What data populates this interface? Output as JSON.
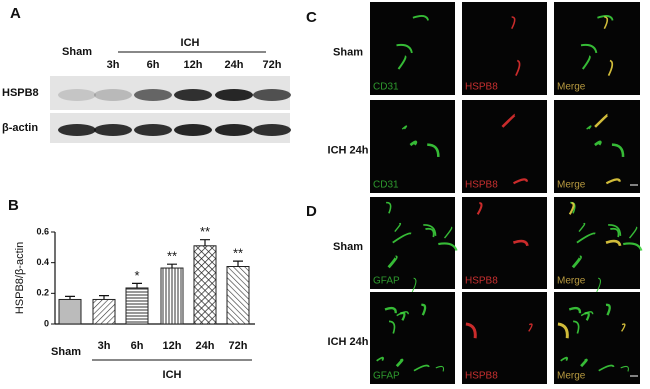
{
  "panel_a": {
    "letter": "A",
    "sham_label": "Sham",
    "group_label": "ICH",
    "timepoints": [
      "3h",
      "6h",
      "12h",
      "24h",
      "72h"
    ],
    "rows": [
      "HSPB8",
      "β-actin"
    ]
  },
  "chart_data": {
    "type": "bar",
    "letter": "B",
    "ylabel": "HSPB8/β-actin",
    "categories": [
      "Sham",
      "3h",
      "6h",
      "12h",
      "24h",
      "72h"
    ],
    "group_label": "ICH",
    "values": [
      0.16,
      0.16,
      0.235,
      0.365,
      0.51,
      0.375
    ],
    "errors": [
      0.02,
      0.025,
      0.03,
      0.025,
      0.04,
      0.035
    ],
    "significance": [
      null,
      null,
      "*",
      "**",
      "**",
      "**"
    ],
    "ylim": [
      0,
      0.6
    ],
    "yticks": [
      0,
      0.2,
      0.4,
      0.6
    ]
  },
  "panel_c": {
    "letter": "C",
    "rows": [
      "Sham",
      "ICH 24h"
    ],
    "channels": [
      "CD31",
      "HSPB8",
      "Merge"
    ]
  },
  "panel_d": {
    "letter": "D",
    "rows": [
      "Sham",
      "ICH 24h"
    ],
    "channels": [
      "GFAP",
      "HSPB8",
      "Merge"
    ]
  }
}
